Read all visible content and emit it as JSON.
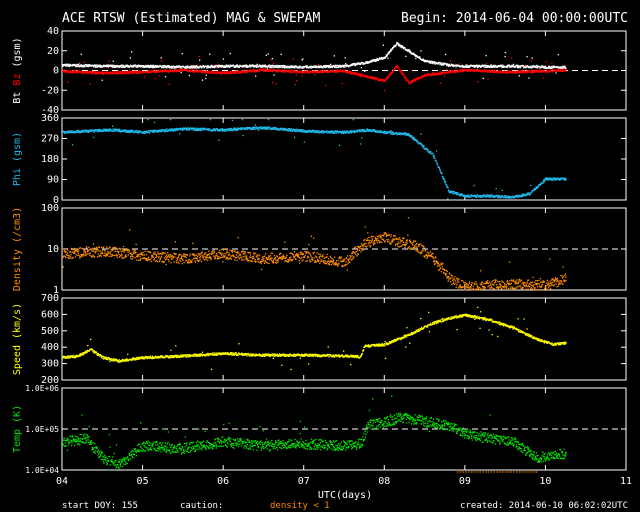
{
  "header": {
    "title": "ACE RTSW (Estimated) MAG & SWEPAM",
    "begin": "Begin: 2014-06-04 00:00:00UTC"
  },
  "footer": {
    "start_doy": "start DOY: 155",
    "caution": "caution:",
    "density_note": "density < 1",
    "created": "created: 2014-06-10 06:02:02UTC",
    "xlabel": "UTC(days)"
  },
  "colors": {
    "white": "#ffffff",
    "red": "#ff0000",
    "cyan": "#22b8e8",
    "orange": "#ff8c00",
    "yellow": "#ffff00",
    "green": "#00e000",
    "caution_orange": "#ff8c00"
  },
  "chart_data": [
    {
      "type": "scatter",
      "ylabel_parts": [
        "Bt",
        "Bz",
        "(gsm)"
      ],
      "ylim": [
        -40,
        40
      ],
      "yticks": [
        "40",
        "20",
        "0",
        "-20",
        "-40"
      ],
      "ytick_values": [
        40,
        20,
        0,
        -20,
        -40
      ],
      "reference_line": 0,
      "series": [
        {
          "name": "Bt",
          "color": "#ffffff",
          "x": [
            4.0,
            4.5,
            5.0,
            5.5,
            6.0,
            6.5,
            7.0,
            7.5,
            7.8,
            8.0,
            8.15,
            8.3,
            8.5,
            8.8,
            9.0,
            9.5,
            10.0,
            10.25
          ],
          "y": [
            6,
            5,
            5,
            4,
            5,
            5,
            4,
            5,
            9,
            14,
            28,
            20,
            10,
            6,
            5,
            5,
            4,
            4
          ]
        },
        {
          "name": "Bz",
          "color": "#ff0000",
          "x": [
            4.0,
            4.5,
            5.0,
            5.5,
            6.0,
            6.5,
            7.0,
            7.5,
            7.8,
            8.0,
            8.15,
            8.3,
            8.5,
            8.8,
            9.0,
            9.5,
            10.0,
            10.25
          ],
          "y": [
            0,
            -2,
            -1,
            1,
            -2,
            1,
            -1,
            0,
            -6,
            -10,
            5,
            -12,
            -4,
            -1,
            1,
            -1,
            0,
            1
          ]
        }
      ]
    },
    {
      "type": "scatter",
      "ylabel_parts": [
        "Phi (gsm)"
      ],
      "ylim": [
        0,
        360
      ],
      "yticks": [
        "360",
        "270",
        "180",
        "90",
        "0"
      ],
      "ytick_values": [
        360,
        270,
        180,
        90,
        0
      ],
      "series": [
        {
          "name": "Phi",
          "color": "#22b8e8",
          "x": [
            4.0,
            4.3,
            4.6,
            5.0,
            5.5,
            6.0,
            6.5,
            7.0,
            7.5,
            7.8,
            8.0,
            8.3,
            8.6,
            8.8,
            9.0,
            9.3,
            9.6,
            9.8,
            10.0,
            10.25
          ],
          "y": [
            300,
            305,
            310,
            300,
            315,
            310,
            320,
            305,
            300,
            310,
            300,
            290,
            200,
            40,
            20,
            20,
            15,
            30,
            95,
            95
          ]
        }
      ]
    },
    {
      "type": "scatter",
      "ylabel_parts": [
        "Density (/cm3)"
      ],
      "yscale": "log",
      "ylim": [
        1,
        100
      ],
      "yticks": [
        "100",
        "10",
        "1"
      ],
      "ytick_values": [
        100,
        10,
        1
      ],
      "reference_line": 10,
      "series": [
        {
          "name": "Density",
          "color": "#ff8c00",
          "x": [
            4.0,
            4.3,
            4.6,
            5.0,
            5.5,
            6.0,
            6.5,
            7.0,
            7.5,
            7.75,
            8.0,
            8.2,
            8.4,
            8.6,
            8.8,
            9.0,
            9.5,
            10.0,
            10.25
          ],
          "y": [
            8,
            8.5,
            9,
            7,
            6,
            8,
            6,
            7,
            5,
            14,
            20,
            15,
            12,
            6,
            2,
            1.2,
            1.5,
            1.3,
            2
          ]
        }
      ]
    },
    {
      "type": "scatter",
      "ylabel_parts": [
        "Speed (km/s)"
      ],
      "ylim": [
        200,
        700
      ],
      "yticks": [
        "700",
        "600",
        "500",
        "400",
        "300",
        "200"
      ],
      "ytick_values": [
        700,
        600,
        500,
        400,
        300,
        200
      ],
      "series": [
        {
          "name": "Speed",
          "color": "#ffff00",
          "x": [
            4.0,
            4.2,
            4.35,
            4.5,
            4.7,
            5.0,
            5.5,
            6.0,
            6.5,
            7.0,
            7.5,
            7.7,
            7.75,
            8.0,
            8.3,
            8.6,
            8.8,
            9.0,
            9.3,
            9.6,
            9.9,
            10.1,
            10.25
          ],
          "y": [
            340,
            350,
            390,
            340,
            320,
            340,
            350,
            365,
            355,
            355,
            350,
            345,
            410,
            420,
            480,
            550,
            580,
            600,
            570,
            520,
            450,
            420,
            430
          ]
        }
      ]
    },
    {
      "type": "scatter",
      "ylabel_parts": [
        "Temp (K)"
      ],
      "yscale": "log",
      "ylim": [
        10000,
        1000000
      ],
      "yticks": [
        "1.0E+06",
        "1.0E+05",
        "1.0E+04"
      ],
      "ytick_values": [
        1000000,
        100000,
        10000
      ],
      "reference_line": 100000,
      "series": [
        {
          "name": "Temp",
          "color": "#00e000",
          "x": [
            4.0,
            4.3,
            4.5,
            4.7,
            5.0,
            5.5,
            6.0,
            6.5,
            7.0,
            7.5,
            7.7,
            7.8,
            8.0,
            8.2,
            8.4,
            8.6,
            8.8,
            9.0,
            9.3,
            9.6,
            9.9,
            10.1,
            10.25
          ],
          "y": [
            50000,
            60000,
            20000,
            14000,
            40000,
            35000,
            50000,
            40000,
            45000,
            40000,
            45000,
            130000,
            150000,
            200000,
            170000,
            150000,
            120000,
            80000,
            60000,
            50000,
            20000,
            25000,
            25000
          ]
        }
      ]
    }
  ],
  "xaxis": {
    "ticks": [
      4,
      5,
      6,
      7,
      8,
      9,
      10,
      11
    ],
    "labels": [
      "04",
      "05",
      "06",
      "07",
      "08",
      "09",
      "10",
      "11"
    ],
    "xlim": [
      4,
      11
    ]
  }
}
